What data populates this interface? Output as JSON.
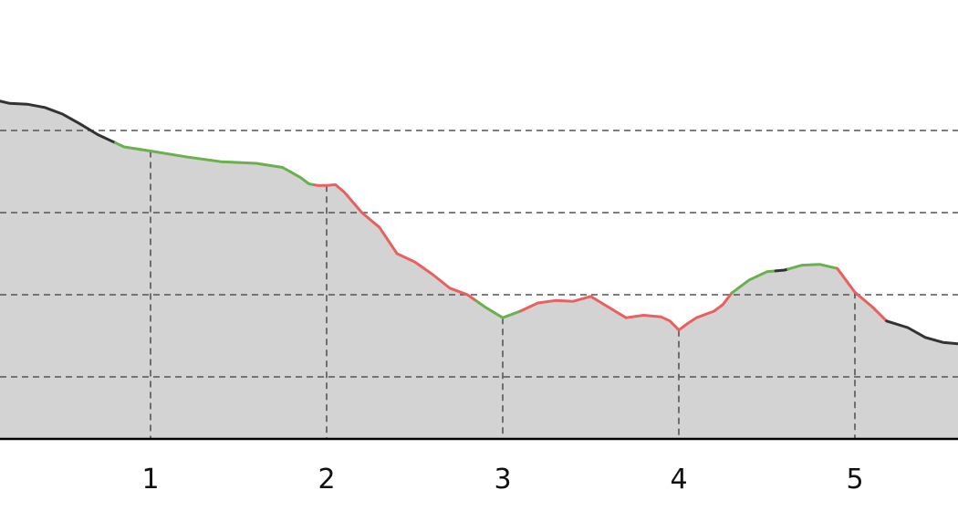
{
  "chart_data": {
    "type": "area",
    "title": "",
    "xlabel": "",
    "ylabel": "",
    "xlim": [
      0.0,
      5.6
    ],
    "ylim": [
      0,
      5.3
    ],
    "x_ticks": [
      "1",
      "2",
      "3",
      "4",
      "5"
    ],
    "x_tick_values": [
      1,
      2,
      3,
      4,
      5
    ],
    "grid": {
      "horizontal_values": [
        1,
        2,
        3,
        4
      ],
      "vertical_values": [
        1,
        2,
        3,
        4,
        5
      ]
    },
    "fill_color": "#d3d3d3",
    "segment_colors": {
      "neutral": "#333333",
      "ascent": "#6ab04c",
      "descent": "#e96060"
    },
    "series": [
      {
        "points": [
          [
            0.0,
            4.4
          ],
          [
            0.1,
            4.38
          ],
          [
            0.2,
            4.33
          ],
          [
            0.3,
            4.32
          ],
          [
            0.4,
            4.28
          ],
          [
            0.5,
            4.2
          ],
          [
            0.6,
            4.08
          ],
          [
            0.7,
            3.95
          ],
          [
            0.78,
            3.87
          ],
          [
            0.85,
            3.8
          ],
          [
            1.0,
            3.75
          ],
          [
            1.2,
            3.68
          ],
          [
            1.4,
            3.62
          ],
          [
            1.6,
            3.6
          ],
          [
            1.75,
            3.55
          ],
          [
            1.85,
            3.43
          ],
          [
            1.9,
            3.35
          ],
          [
            1.95,
            3.33
          ],
          [
            2.0,
            3.33
          ],
          [
            2.05,
            3.34
          ],
          [
            2.1,
            3.25
          ],
          [
            2.2,
            3.0
          ],
          [
            2.3,
            2.82
          ],
          [
            2.4,
            2.5
          ],
          [
            2.5,
            2.4
          ],
          [
            2.6,
            2.25
          ],
          [
            2.7,
            2.08
          ],
          [
            2.8,
            2.0
          ],
          [
            2.9,
            1.85
          ],
          [
            3.0,
            1.72
          ],
          [
            3.1,
            1.8
          ],
          [
            3.2,
            1.9
          ],
          [
            3.3,
            1.93
          ],
          [
            3.4,
            1.92
          ],
          [
            3.5,
            1.98
          ],
          [
            3.6,
            1.85
          ],
          [
            3.7,
            1.72
          ],
          [
            3.8,
            1.75
          ],
          [
            3.9,
            1.73
          ],
          [
            3.95,
            1.68
          ],
          [
            4.0,
            1.57
          ],
          [
            4.05,
            1.65
          ],
          [
            4.1,
            1.72
          ],
          [
            4.2,
            1.8
          ],
          [
            4.25,
            1.88
          ],
          [
            4.3,
            2.02
          ],
          [
            4.4,
            2.18
          ],
          [
            4.5,
            2.28
          ],
          [
            4.6,
            2.3
          ],
          [
            4.7,
            2.36
          ],
          [
            4.8,
            2.37
          ],
          [
            4.9,
            2.32
          ],
          [
            5.0,
            2.03
          ],
          [
            5.1,
            1.85
          ],
          [
            5.18,
            1.68
          ],
          [
            5.3,
            1.6
          ],
          [
            5.4,
            1.48
          ],
          [
            5.5,
            1.42
          ],
          [
            5.6,
            1.4
          ]
        ],
        "segments": [
          {
            "from": 0.0,
            "to": 0.8,
            "kind": "neutral"
          },
          {
            "from": 0.8,
            "to": 1.93,
            "kind": "ascent"
          },
          {
            "from": 1.93,
            "to": 2.85,
            "kind": "descent"
          },
          {
            "from": 2.85,
            "to": 3.1,
            "kind": "ascent"
          },
          {
            "from": 3.1,
            "to": 4.3,
            "kind": "descent"
          },
          {
            "from": 4.3,
            "to": 4.55,
            "kind": "ascent"
          },
          {
            "from": 4.55,
            "to": 4.62,
            "kind": "neutral"
          },
          {
            "from": 4.62,
            "to": 4.9,
            "kind": "ascent"
          },
          {
            "from": 4.9,
            "to": 5.18,
            "kind": "descent"
          },
          {
            "from": 5.18,
            "to": 5.6,
            "kind": "neutral"
          }
        ]
      }
    ]
  }
}
